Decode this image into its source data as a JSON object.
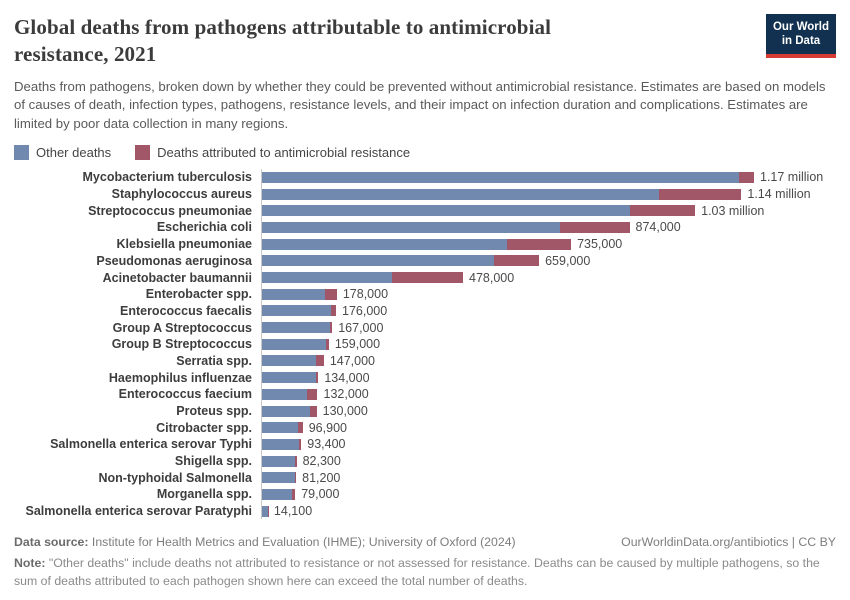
{
  "header": {
    "title_line1": "Global deaths from pathogens attributable to antimicrobial",
    "title_line2": "resistance, 2021",
    "logo": {
      "line1": "Our World",
      "line2": "in Data",
      "bg": "#12304f",
      "accent": "#d73c34"
    }
  },
  "subtitle": "Deaths from pathogens, broken down by whether they could be prevented without antimicrobial resistance. Estimates are based on models of causes of death, infection types, pathogens, resistance levels, and their impact on infection duration and complications. Estimates are limited by poor data collection in many regions.",
  "chart_data": {
    "type": "bar",
    "orientation": "horizontal",
    "stacked": true,
    "title": "Global deaths from pathogens attributable to antimicrobial resistance, 2021",
    "legend_position": "top",
    "grid": false,
    "xlim": [
      0,
      1365000
    ],
    "categories": [
      "Mycobacterium tuberculosis",
      "Staphylococcus aureus",
      "Streptococcus pneumoniae",
      "Escherichia coli",
      "Klebsiella pneumoniae",
      "Pseudomonas aeruginosa",
      "Acinetobacter baumannii",
      "Enterobacter spp.",
      "Enterococcus faecalis",
      "Group A Streptococcus",
      "Group B Streptococcus",
      "Serratia spp.",
      "Haemophilus influenzae",
      "Enterococcus faecium",
      "Proteus spp.",
      "Citrobacter spp.",
      "Salmonella enterica serovar Typhi",
      "Shigella spp.",
      "Non-typhoidal Salmonella",
      "Morganella spp.",
      "Salmonella enterica serovar Paratyphi"
    ],
    "series": [
      {
        "name": "Other deaths",
        "color": "#7189ae",
        "values": [
          1135000,
          945000,
          874000,
          708000,
          583000,
          552000,
          310000,
          150000,
          164000,
          162000,
          152000,
          128000,
          128000,
          108000,
          113000,
          85900,
          87400,
          78800,
          79200,
          71000,
          13100
        ]
      },
      {
        "name": "Deaths attributed to antimicrobial resistance",
        "color": "#a25768",
        "values": [
          35000,
          195000,
          156000,
          166000,
          152000,
          107000,
          168000,
          28000,
          12000,
          5000,
          7000,
          19000,
          6000,
          24000,
          17000,
          11000,
          6000,
          3500,
          2000,
          8000,
          1000
        ]
      }
    ],
    "totals": [
      1170000,
      1140000,
      1030000,
      874000,
      735000,
      659000,
      478000,
      178000,
      176000,
      167000,
      159000,
      147000,
      134000,
      132000,
      130000,
      96900,
      93400,
      82300,
      81200,
      79000,
      14100
    ],
    "total_labels": [
      "1.17 million",
      "1.14 million",
      "1.03 million",
      "874,000",
      "735,000",
      "659,000",
      "478,000",
      "178,000",
      "176,000",
      "167,000",
      "159,000",
      "147,000",
      "134,000",
      "132,000",
      "130,000",
      "96,900",
      "93,400",
      "82,300",
      "81,200",
      "79,000",
      "14,100"
    ]
  },
  "footer": {
    "source_label": "Data source:",
    "source_text": " Institute for Health Metrics and Evaluation (IHME); University of Oxford (2024)",
    "rights": "OurWorldinData.org/antibiotics | CC BY",
    "note_label": "Note:",
    "note_text": " \"Other deaths\" include deaths not attributed to resistance or not assessed for resistance. Deaths can be caused by multiple pathogens, so the sum of deaths attributed to each pathogen shown here can exceed the total number of deaths."
  }
}
